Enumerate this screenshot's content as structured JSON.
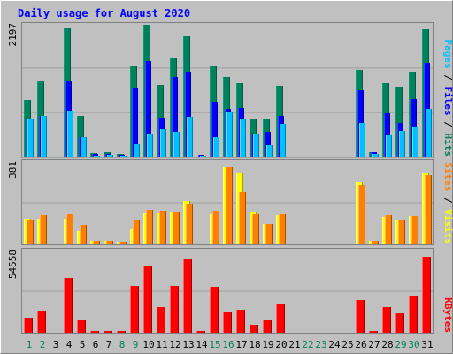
{
  "chart_data": [
    {
      "type": "bar",
      "title": "Daily usage for August 2020",
      "ymax_label": "2197",
      "ylim": [
        0,
        2197
      ],
      "categories": [
        "1",
        "2",
        "3",
        "4",
        "5",
        "6",
        "7",
        "8",
        "9",
        "10",
        "11",
        "12",
        "13",
        "14",
        "15",
        "16",
        "17",
        "18",
        "19",
        "20",
        "21",
        "22",
        "23",
        "24",
        "25",
        "26",
        "27",
        "28",
        "29",
        "30",
        "31"
      ],
      "weekend_days": [
        "1",
        "2",
        "8",
        "9",
        "15",
        "16",
        "22",
        "23",
        "29",
        "30"
      ],
      "series": [
        {
          "name": "Hits",
          "color": "#00805c",
          "values": [
            950,
            1250,
            0,
            2140,
            680,
            60,
            70,
            40,
            1500,
            2190,
            1190,
            1630,
            2010,
            0,
            1510,
            1320,
            1220,
            620,
            620,
            1180,
            0,
            0,
            0,
            0,
            0,
            1450,
            80,
            1230,
            1160,
            1420,
            2120
          ]
        },
        {
          "name": "Files",
          "color": "#0000ff",
          "values": [
            640,
            680,
            0,
            1270,
            330,
            40,
            50,
            30,
            1150,
            1590,
            650,
            1320,
            1420,
            30,
            920,
            790,
            810,
            390,
            410,
            680,
            0,
            0,
            0,
            0,
            0,
            1100,
            70,
            720,
            560,
            960,
            1570
          ]
        },
        {
          "name": "Pages",
          "color": "#00c0ff",
          "values": [
            640,
            680,
            0,
            770,
            330,
            20,
            30,
            20,
            200,
            380,
            450,
            420,
            670,
            10,
            330,
            740,
            640,
            390,
            190,
            540,
            0,
            0,
            0,
            0,
            0,
            560,
            50,
            370,
            430,
            500,
            790
          ]
        }
      ],
      "legend": [
        "Pages",
        "Files",
        "Hits"
      ]
    },
    {
      "type": "bar",
      "ymax_label": "381",
      "ylim": [
        0,
        381
      ],
      "categories": [
        "1",
        "2",
        "3",
        "4",
        "5",
        "6",
        "7",
        "8",
        "9",
        "10",
        "11",
        "12",
        "13",
        "14",
        "15",
        "16",
        "17",
        "18",
        "19",
        "20",
        "21",
        "22",
        "23",
        "24",
        "25",
        "26",
        "27",
        "28",
        "29",
        "30",
        "31"
      ],
      "series": [
        {
          "name": "Visits",
          "color": "#ffff00",
          "values": [
            120,
            120,
            0,
            120,
            60,
            15,
            15,
            10,
            70,
            145,
            145,
            150,
            200,
            0,
            140,
            355,
            330,
            150,
            95,
            135,
            0,
            0,
            0,
            0,
            0,
            285,
            15,
            125,
            110,
            130,
            330
          ]
        },
        {
          "name": "Sites",
          "color": "#ff8000",
          "values": [
            110,
            135,
            0,
            140,
            90,
            15,
            15,
            10,
            110,
            160,
            155,
            150,
            190,
            0,
            155,
            355,
            240,
            140,
            95,
            140,
            0,
            0,
            0,
            0,
            0,
            275,
            15,
            135,
            110,
            130,
            320
          ]
        }
      ],
      "legend": [
        "Sites",
        "Visits"
      ]
    },
    {
      "type": "bar",
      "ymax_label": "54558",
      "ylim": [
        0,
        54558
      ],
      "categories": [
        "1",
        "2",
        "3",
        "4",
        "5",
        "6",
        "7",
        "8",
        "9",
        "10",
        "11",
        "12",
        "13",
        "14",
        "15",
        "16",
        "17",
        "18",
        "19",
        "20",
        "21",
        "22",
        "23",
        "24",
        "25",
        "26",
        "27",
        "28",
        "29",
        "30",
        "31"
      ],
      "series": [
        {
          "name": "KBytes",
          "color": "#ff0000",
          "values": [
            10000,
            14500,
            0,
            36500,
            8000,
            1000,
            1000,
            1000,
            31000,
            44000,
            16800,
            31000,
            48500,
            1000,
            30500,
            14100,
            15000,
            5000,
            8000,
            19000,
            0,
            0,
            0,
            0,
            0,
            21500,
            1000,
            17300,
            13000,
            24500,
            50700
          ]
        }
      ],
      "legend": [
        "KBytes"
      ]
    }
  ],
  "colors": {
    "background": "#c0c0c0",
    "title": "#0000ff",
    "weekday_tick": "#000000",
    "weekend_tick": "#00805c",
    "gridline": "#a0a0a0"
  }
}
